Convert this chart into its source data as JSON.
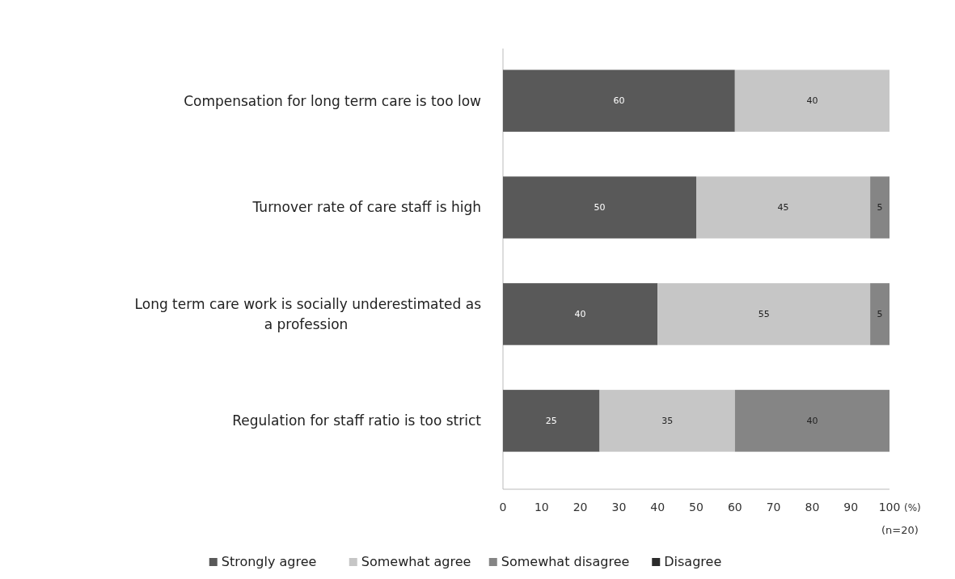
{
  "chart_data": {
    "type": "bar",
    "orientation": "horizontal",
    "stacked": true,
    "categories": [
      "Compensation for long term care is too low",
      "Turnover rate of care staff is high",
      "Long term care work is socially underestimated as a profession",
      "Regulation for staff ratio is too strict"
    ],
    "series": [
      {
        "name": "Strongly agree",
        "color": "#595959",
        "values": [
          60,
          50,
          40,
          25
        ],
        "value_labels": [
          "60",
          "50",
          "40",
          "25"
        ]
      },
      {
        "name": "Somewhat agree",
        "color": "#c6c6c6",
        "values": [
          40,
          45,
          55,
          35
        ],
        "value_labels": [
          "40",
          "45",
          "55",
          "35"
        ]
      },
      {
        "name": "Somewhat disagree",
        "color": "#858585",
        "values": [
          0,
          5,
          5,
          40
        ],
        "value_labels": [
          null,
          "5",
          "5",
          "40"
        ]
      },
      {
        "name": "Disagree",
        "color": "#2b2b2b",
        "values": [
          0,
          0,
          0,
          0
        ],
        "value_labels": [
          null,
          null,
          null,
          null
        ]
      }
    ],
    "xlim": [
      0,
      100
    ],
    "xticks": [
      0,
      10,
      20,
      30,
      40,
      50,
      60,
      70,
      80,
      90,
      100
    ],
    "xlabel": "(%)",
    "annotations": [
      "(n=20)"
    ],
    "legend": "bottom"
  }
}
